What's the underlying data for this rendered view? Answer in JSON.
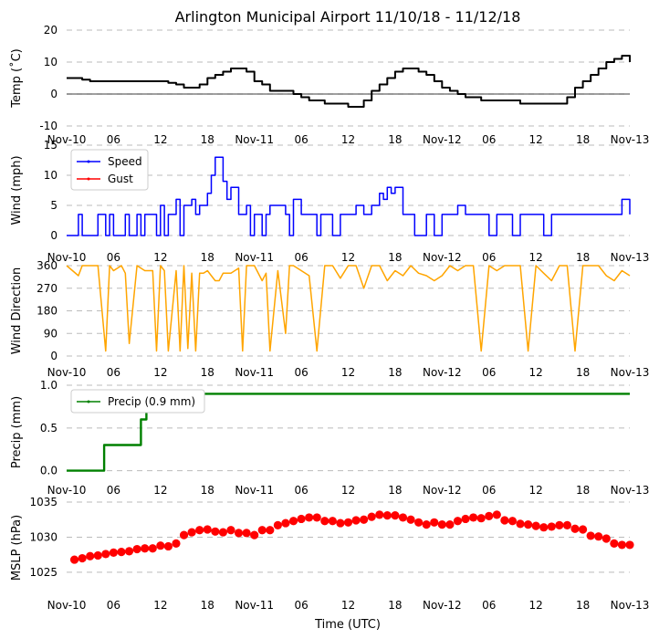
{
  "title": "Arlington Municipal Airport 11/10/18 - 11/12/18",
  "xlabel": "Time (UTC)",
  "colors": {
    "temp": "#000000",
    "speed": "#0000ff",
    "gust": "#ff0000",
    "wdir": "#ffa500",
    "precip": "#008000",
    "mslp": "#ff0000",
    "grid": "#bbbbbb"
  },
  "chart_data": [
    {
      "type": "line",
      "id": "temp",
      "ylabel": "Temp ($^\\circ$C)",
      "ylabel_display": "Temp (˚C)",
      "ylim": [
        -10,
        20
      ],
      "yticks": [
        -10,
        0,
        10,
        20
      ],
      "xlim": [
        0,
        72
      ],
      "xtick_labels": [
        "Nov-10",
        "06",
        "12",
        "18",
        "Nov-11",
        "06",
        "12",
        "18",
        "Nov-12",
        "06",
        "12",
        "18",
        "Nov-13"
      ],
      "zero_line": true,
      "series": [
        {
          "name": "Temp",
          "x": [
            0,
            2,
            3,
            5,
            7,
            8,
            9,
            10,
            11,
            12,
            13,
            14,
            15,
            16,
            17,
            18,
            19,
            20,
            21,
            22,
            23,
            24,
            25,
            26,
            27,
            28,
            29,
            30,
            31,
            32,
            33,
            34,
            35,
            36,
            37,
            38,
            39,
            40,
            41,
            42,
            43,
            44,
            45,
            46,
            47,
            48,
            49,
            50,
            51,
            52,
            53,
            54,
            55,
            56,
            57,
            58,
            59,
            60,
            61,
            62,
            63,
            64,
            65,
            66,
            67,
            68,
            69,
            70,
            71,
            72
          ],
          "y": [
            5,
            4.5,
            4,
            4,
            4,
            4,
            4,
            4,
            4,
            4,
            3.5,
            3,
            2,
            2,
            3,
            5,
            6,
            7,
            8,
            8,
            7,
            4,
            3,
            1,
            1,
            1,
            0,
            -1,
            -2,
            -2,
            -3,
            -3,
            -3,
            -4,
            -4,
            -2,
            1,
            3,
            5,
            7,
            8,
            8,
            7,
            6,
            4,
            2,
            1,
            0,
            -1,
            -1,
            -2,
            -2,
            -2,
            -2,
            -2,
            -3,
            -3,
            -3,
            -3,
            -3,
            -3,
            -1,
            2,
            4,
            6,
            8,
            10,
            11,
            12,
            10
          ]
        }
      ]
    },
    {
      "type": "line",
      "id": "wind",
      "ylabel": "Wind (mph)",
      "ylim": [
        0,
        15
      ],
      "yticks": [
        0,
        5,
        10,
        15
      ],
      "xlim": [
        0,
        72
      ],
      "xtick_labels": [
        "Nov-10",
        "06",
        "12",
        "18",
        "Nov-11",
        "06",
        "12",
        "18",
        "Nov-12",
        "06",
        "12",
        "18",
        "Nov-13"
      ],
      "legend": [
        "Speed",
        "Gust"
      ],
      "series": [
        {
          "name": "Speed",
          "x": [
            0,
            1.5,
            2,
            3,
            4,
            5,
            5.5,
            6,
            7,
            7.5,
            8,
            9,
            9.5,
            10,
            11,
            11.5,
            12,
            12.5,
            13,
            14,
            14.5,
            15,
            16,
            16.5,
            17,
            18,
            18.5,
            19,
            20,
            20.5,
            21,
            22,
            23,
            23.5,
            24,
            25,
            25.5,
            26,
            27,
            28,
            28.5,
            29,
            30,
            31,
            32,
            32.5,
            33,
            34,
            35,
            36,
            37,
            38,
            39,
            40,
            40.5,
            41,
            41.5,
            42,
            43,
            44,
            44.5,
            45,
            46,
            47,
            48,
            49,
            50,
            51,
            52,
            53,
            54,
            55,
            56,
            57,
            58,
            59,
            60,
            61,
            62,
            63,
            64,
            65,
            66,
            67,
            68,
            69,
            70,
            71,
            72
          ],
          "y": [
            0,
            3.5,
            0,
            0,
            3.5,
            0,
            3.5,
            0,
            0,
            3.5,
            0,
            3.5,
            0,
            3.5,
            3.5,
            0,
            5,
            0,
            3.5,
            6,
            0,
            5,
            6,
            3.5,
            5,
            7,
            10,
            13,
            9,
            6,
            8,
            3.5,
            5,
            0,
            3.5,
            0,
            3.5,
            5,
            5,
            3.5,
            0,
            6,
            3.5,
            3.5,
            0,
            3.5,
            3.5,
            0,
            3.5,
            3.5,
            5,
            3.5,
            5,
            7,
            6,
            8,
            7,
            8,
            3.5,
            3.5,
            0,
            0,
            3.5,
            0,
            3.5,
            3.5,
            5,
            3.5,
            3.5,
            3.5,
            0,
            3.5,
            3.5,
            0,
            3.5,
            3.5,
            3.5,
            0,
            3.5,
            3.5,
            3.5,
            3.5,
            3.5,
            3.5,
            3.5,
            3.5,
            3.5,
            6,
            3.5
          ]
        },
        {
          "name": "Gust",
          "x": [],
          "y": []
        }
      ]
    },
    {
      "type": "line",
      "id": "wdir",
      "ylabel": "Wind Direction",
      "ylim": [
        0,
        360
      ],
      "yticks": [
        0,
        90,
        180,
        270,
        360
      ],
      "xlim": [
        0,
        72
      ],
      "xtick_labels": [
        "Nov-10",
        "06",
        "12",
        "18",
        "Nov-11",
        "06",
        "12",
        "18",
        "Nov-12",
        "06",
        "12",
        "18",
        "Nov-13"
      ],
      "series": [
        {
          "name": "Direction",
          "x": [
            0,
            1.5,
            2,
            4,
            5,
            5.5,
            6,
            7,
            7.5,
            8,
            9,
            10,
            11,
            11.5,
            12,
            12.5,
            13,
            14,
            14.5,
            15,
            15.5,
            16,
            16.5,
            17,
            17.5,
            18,
            18.5,
            19,
            19.5,
            20,
            21,
            22,
            22.5,
            23,
            24,
            25,
            25.5,
            26,
            27,
            28,
            28.5,
            29,
            30,
            31,
            32,
            33,
            34,
            35,
            36,
            37,
            38,
            39,
            40,
            41,
            42,
            43,
            44,
            45,
            46,
            47,
            48,
            49,
            50,
            51,
            52,
            53,
            54,
            55,
            56,
            57,
            58,
            59,
            60,
            61,
            62,
            63,
            64,
            65,
            66,
            67,
            68,
            69,
            70,
            71,
            72
          ],
          "y": [
            360,
            320,
            360,
            360,
            20,
            360,
            340,
            360,
            330,
            50,
            360,
            340,
            340,
            20,
            360,
            340,
            20,
            340,
            20,
            360,
            30,
            330,
            20,
            330,
            330,
            340,
            320,
            300,
            300,
            330,
            330,
            350,
            20,
            360,
            360,
            300,
            330,
            20,
            340,
            90,
            360,
            360,
            340,
            320,
            20,
            360,
            360,
            310,
            360,
            360,
            270,
            360,
            360,
            300,
            340,
            320,
            360,
            330,
            320,
            300,
            320,
            360,
            340,
            360,
            360,
            20,
            360,
            340,
            360,
            360,
            360,
            20,
            360,
            330,
            300,
            360,
            360,
            20,
            360,
            360,
            360,
            320,
            300,
            340,
            320
          ]
        }
      ]
    },
    {
      "type": "line",
      "id": "precip",
      "ylabel": "Precip (mm)",
      "ylim": [
        -0.1,
        1.0
      ],
      "yticks": [
        0.0,
        0.5,
        1.0
      ],
      "xlim": [
        0,
        72
      ],
      "xtick_labels": [
        "Nov-10",
        "06",
        "12",
        "18",
        "Nov-11",
        "06",
        "12",
        "18",
        "Nov-12",
        "06",
        "12",
        "18",
        "Nov-13"
      ],
      "legend": [
        "Precip (0.9 mm)"
      ],
      "series": [
        {
          "name": "Precip (0.9 mm)",
          "x": [
            0,
            4.8,
            4.8,
            9.5,
            9.5,
            10.2,
            10.2,
            72
          ],
          "y": [
            0,
            0,
            0.3,
            0.3,
            0.6,
            0.6,
            0.9,
            0.9
          ]
        }
      ]
    },
    {
      "type": "scatter",
      "id": "mslp",
      "ylabel": "MSLP (hPa)",
      "ylim": [
        1022,
        1035
      ],
      "yticks": [
        1025,
        1030,
        1035
      ],
      "xlim": [
        0,
        72
      ],
      "xtick_labels": [
        "Nov-10",
        "06",
        "12",
        "18",
        "Nov-11",
        "06",
        "12",
        "18",
        "Nov-12",
        "06",
        "12",
        "18",
        "Nov-13"
      ],
      "series": [
        {
          "name": "MSLP",
          "x": [
            1,
            2,
            3,
            4,
            5,
            6,
            7,
            8,
            9,
            10,
            11,
            12,
            13,
            14,
            15,
            16,
            17,
            18,
            19,
            20,
            21,
            22,
            23,
            24,
            25,
            26,
            27,
            28,
            29,
            30,
            31,
            32,
            33,
            34,
            35,
            36,
            37,
            38,
            39,
            40,
            41,
            42,
            43,
            44,
            45,
            46,
            47,
            48,
            49,
            50,
            51,
            52,
            53,
            54,
            55,
            56,
            57,
            58,
            59,
            60,
            61,
            62,
            63,
            64,
            65,
            66,
            67,
            68,
            69,
            70,
            71,
            72
          ],
          "y": [
            1026.8,
            1027,
            1027.3,
            1027.4,
            1027.6,
            1027.8,
            1027.9,
            1028,
            1028.3,
            1028.4,
            1028.4,
            1028.8,
            1028.7,
            1029.1,
            1030.3,
            1030.7,
            1031,
            1031.1,
            1030.8,
            1030.7,
            1031,
            1030.6,
            1030.6,
            1030.3,
            1031,
            1031,
            1031.7,
            1032,
            1032.3,
            1032.6,
            1032.8,
            1032.8,
            1032.3,
            1032.3,
            1032,
            1032.1,
            1032.4,
            1032.5,
            1032.9,
            1033.2,
            1033.1,
            1033.1,
            1032.8,
            1032.5,
            1032.1,
            1031.8,
            1032.1,
            1031.8,
            1031.8,
            1032.3,
            1032.6,
            1032.8,
            1032.7,
            1033,
            1033.2,
            1032.4,
            1032.3,
            1031.9,
            1031.8,
            1031.6,
            1031.4,
            1031.5,
            1031.7,
            1031.7,
            1031.2,
            1031.1,
            1030.2,
            1030.1,
            1029.8,
            1029.1,
            1028.9,
            1028.9
          ]
        }
      ]
    }
  ]
}
